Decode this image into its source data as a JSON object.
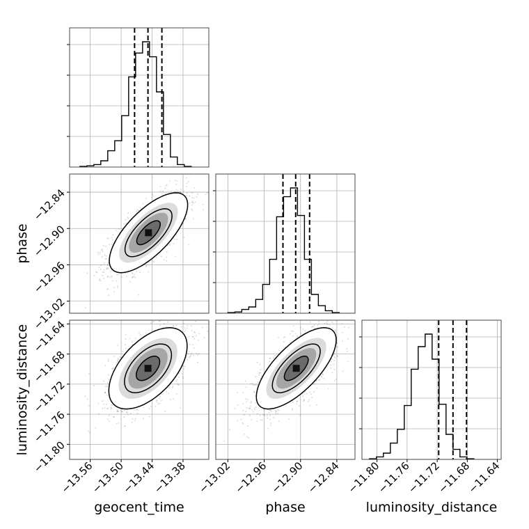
{
  "chart_data": {
    "type": "corner",
    "parameters": [
      "geocent_time",
      "phase",
      "luminosity_distance"
    ],
    "axes": [
      {
        "name": "geocent_time",
        "label": "geocent_time",
        "range": [
          -13.6,
          -13.33
        ],
        "ticks": [
          -13.56,
          -13.5,
          -13.44,
          -13.38
        ],
        "quantiles": [
          -13.474,
          -13.448,
          -13.421
        ],
        "bin_edges_start": -13.58,
        "bin_width": 0.0135
      },
      {
        "name": "phase",
        "label": "phase",
        "range": [
          -13.04,
          -12.81
        ],
        "ticks": [
          -13.02,
          -12.96,
          -12.9,
          -12.84
        ],
        "quantiles": [
          -12.929,
          -12.908,
          -12.885
        ],
        "bin_edges_start": -13.02,
        "bin_width": 0.0115
      },
      {
        "name": "luminosity_distance",
        "label": "luminosity_distance",
        "range": [
          -11.82,
          -11.635
        ],
        "ticks": [
          -11.8,
          -11.76,
          -11.72,
          -11.68,
          -11.64
        ],
        "quantiles": [
          -11.718,
          -11.699,
          -11.681
        ],
        "bin_edges_start": -11.81,
        "bin_width": 0.00925
      }
    ],
    "histograms": [
      [
        0.005,
        0.01,
        0.02,
        0.05,
        0.13,
        0.21,
        0.41,
        0.72,
        0.91,
        1.0,
        0.88,
        0.6,
        0.26,
        0.08,
        0.02,
        0.005
      ],
      [
        0.005,
        0.01,
        0.03,
        0.05,
        0.11,
        0.23,
        0.43,
        0.77,
        0.93,
        1.0,
        0.78,
        0.43,
        0.15,
        0.06,
        0.02,
        0.005
      ],
      [
        0.005,
        0.02,
        0.05,
        0.13,
        0.24,
        0.43,
        0.72,
        0.9,
        1.0,
        0.8,
        0.44,
        0.2,
        0.08,
        0.02,
        0.005
      ]
    ],
    "pairs": [
      {
        "x": "geocent_time",
        "y": "phase",
        "mean": [
          -13.447,
          -12.907
        ],
        "sd": [
          0.038,
          0.033
        ],
        "corr": 0.7
      },
      {
        "x": "geocent_time",
        "y": "luminosity_distance",
        "mean": [
          -13.448,
          -11.699
        ],
        "sd": [
          0.038,
          0.027
        ],
        "corr": 0.55
      },
      {
        "x": "phase",
        "y": "luminosity_distance",
        "mean": [
          -12.907,
          -11.699
        ],
        "sd": [
          0.033,
          0.027
        ],
        "corr": 0.7
      }
    ],
    "grid": true
  }
}
